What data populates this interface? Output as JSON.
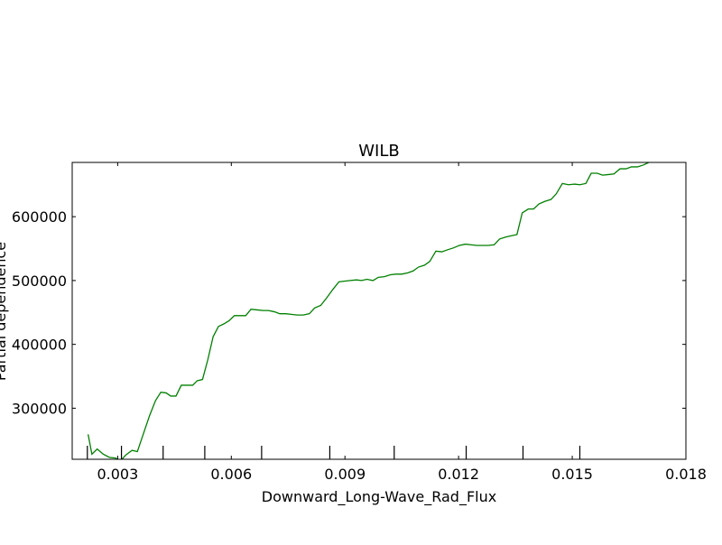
{
  "chart_data": {
    "type": "line",
    "title": "WILB",
    "xlabel": "Downward_Long-Wave_Rad_Flux",
    "ylabel": "Partial dependence",
    "xlim": [
      0.0018,
      0.018
    ],
    "ylim": [
      220000,
      685000
    ],
    "x_ticks": [
      {
        "value": 0.003,
        "label": "0.003"
      },
      {
        "value": 0.006,
        "label": "0.006"
      },
      {
        "value": 0.009,
        "label": "0.009"
      },
      {
        "value": 0.012,
        "label": "0.012"
      },
      {
        "value": 0.015,
        "label": "0.015"
      },
      {
        "value": 0.018,
        "label": "0.018"
      }
    ],
    "y_ticks": [
      {
        "value": 300000,
        "label": "300000"
      },
      {
        "value": 400000,
        "label": "400000"
      },
      {
        "value": 500000,
        "label": "500000"
      },
      {
        "value": 600000,
        "label": "600000"
      }
    ],
    "rug_x": [
      0.0022,
      0.0031,
      0.0042,
      0.0053,
      0.0068,
      0.0086,
      0.0103,
      0.0122,
      0.0137,
      0.0152
    ],
    "grid": false,
    "legend": "none",
    "series": [
      {
        "color": "#008000",
        "points": [
          [
            0.00222,
            259000
          ],
          [
            0.00232,
            228000
          ],
          [
            0.00246,
            236000
          ],
          [
            0.00262,
            228000
          ],
          [
            0.00278,
            223000
          ],
          [
            0.00294,
            222000
          ],
          [
            0.00308,
            218000
          ],
          [
            0.00322,
            227000
          ],
          [
            0.00338,
            234000
          ],
          [
            0.00352,
            232000
          ],
          [
            0.00368,
            260000
          ],
          [
            0.00384,
            288000
          ],
          [
            0.004,
            312000
          ],
          [
            0.00414,
            325000
          ],
          [
            0.00428,
            324000
          ],
          [
            0.0044,
            319000
          ],
          [
            0.00454,
            319000
          ],
          [
            0.00468,
            336000
          ],
          [
            0.00484,
            336000
          ],
          [
            0.00498,
            336000
          ],
          [
            0.0051,
            343000
          ],
          [
            0.00524,
            345000
          ],
          [
            0.00538,
            376000
          ],
          [
            0.00552,
            412000
          ],
          [
            0.00566,
            428000
          ],
          [
            0.0058,
            432000
          ],
          [
            0.00594,
            437000
          ],
          [
            0.00608,
            445000
          ],
          [
            0.00622,
            445000
          ],
          [
            0.00638,
            445000
          ],
          [
            0.00652,
            455000
          ],
          [
            0.00668,
            454000
          ],
          [
            0.00684,
            453000
          ],
          [
            0.00698,
            453000
          ],
          [
            0.00714,
            451000
          ],
          [
            0.00728,
            448000
          ],
          [
            0.00744,
            448000
          ],
          [
            0.00758,
            447000
          ],
          [
            0.00774,
            446000
          ],
          [
            0.0079,
            446000
          ],
          [
            0.00806,
            448000
          ],
          [
            0.0082,
            457000
          ],
          [
            0.00836,
            461000
          ],
          [
            0.00852,
            473000
          ],
          [
            0.00868,
            486000
          ],
          [
            0.00884,
            498000
          ],
          [
            0.00898,
            499000
          ],
          [
            0.00914,
            500000
          ],
          [
            0.0093,
            501000
          ],
          [
            0.00944,
            500000
          ],
          [
            0.00958,
            502000
          ],
          [
            0.00974,
            500000
          ],
          [
            0.00988,
            505000
          ],
          [
            0.01004,
            506000
          ],
          [
            0.0102,
            509000
          ],
          [
            0.01034,
            510000
          ],
          [
            0.0105,
            510000
          ],
          [
            0.01066,
            512000
          ],
          [
            0.0108,
            515000
          ],
          [
            0.01094,
            521000
          ],
          [
            0.0111,
            524000
          ],
          [
            0.01124,
            530000
          ],
          [
            0.0114,
            546000
          ],
          [
            0.01156,
            545000
          ],
          [
            0.0117,
            548000
          ],
          [
            0.01186,
            551000
          ],
          [
            0.01202,
            555000
          ],
          [
            0.01218,
            557000
          ],
          [
            0.01232,
            556000
          ],
          [
            0.01248,
            555000
          ],
          [
            0.01264,
            555000
          ],
          [
            0.01278,
            555000
          ],
          [
            0.01294,
            556000
          ],
          [
            0.01308,
            565000
          ],
          [
            0.01324,
            568000
          ],
          [
            0.01338,
            570000
          ],
          [
            0.01354,
            572000
          ],
          [
            0.01368,
            606000
          ],
          [
            0.01384,
            612000
          ],
          [
            0.01398,
            612000
          ],
          [
            0.01412,
            620000
          ],
          [
            0.01428,
            624000
          ],
          [
            0.01444,
            627000
          ],
          [
            0.01458,
            636000
          ],
          [
            0.01474,
            652000
          ],
          [
            0.0149,
            650000
          ],
          [
            0.01506,
            651000
          ],
          [
            0.0152,
            650000
          ],
          [
            0.01536,
            652000
          ],
          [
            0.0155,
            668000
          ],
          [
            0.01566,
            668000
          ],
          [
            0.0158,
            665000
          ],
          [
            0.01596,
            666000
          ],
          [
            0.0161,
            667000
          ],
          [
            0.01626,
            675000
          ],
          [
            0.01642,
            675000
          ],
          [
            0.01656,
            678000
          ],
          [
            0.01672,
            678000
          ],
          [
            0.01688,
            681000
          ],
          [
            0.01702,
            685000
          ]
        ]
      }
    ]
  }
}
